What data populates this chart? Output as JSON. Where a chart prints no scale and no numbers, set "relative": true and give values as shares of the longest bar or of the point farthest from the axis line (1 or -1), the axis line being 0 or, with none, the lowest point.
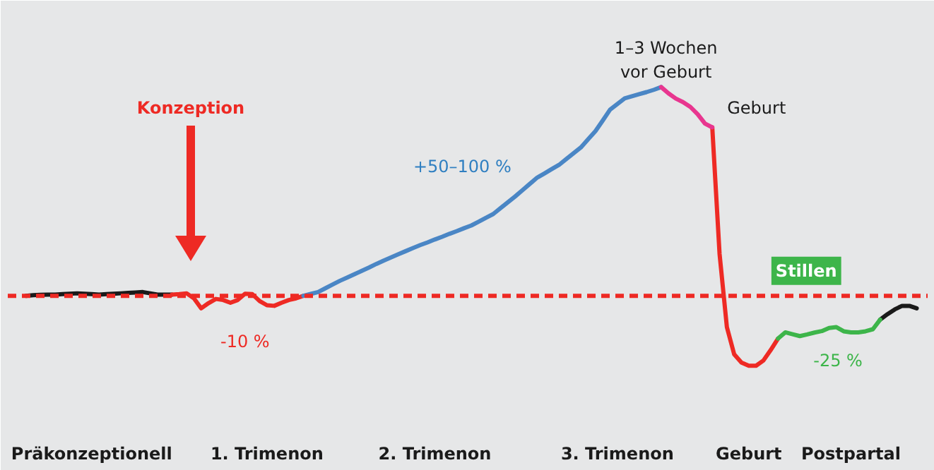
{
  "chart_data": {
    "type": "line",
    "relative": true,
    "line_style": "solid",
    "categories": [
      null,
      null,
      null,
      null,
      null,
      null,
      null,
      null,
      null,
      null,
      "Präkonzeptionell",
      null,
      null,
      null,
      null,
      null,
      null,
      null,
      null,
      null,
      null,
      null,
      null,
      null,
      null,
      null,
      null,
      null,
      null,
      null,
      null,
      null,
      null,
      null,
      "1. Trimenon",
      null,
      null,
      null,
      null,
      null,
      null,
      null,
      null,
      null,
      null,
      null,
      null,
      null,
      null,
      null,
      null,
      null,
      null,
      null,
      null,
      null,
      null,
      "2. Trimenon",
      null,
      null,
      null,
      null,
      null,
      null,
      null,
      null,
      null,
      null,
      null,
      null,
      null,
      null,
      null,
      null,
      null,
      null,
      null,
      null,
      null,
      null,
      null,
      null,
      "3. Trimenon",
      null,
      null,
      null,
      null,
      null,
      null,
      null,
      null,
      null,
      null,
      null,
      null,
      null,
      null,
      null,
      null,
      null,
      "Geburt",
      null,
      null,
      null,
      null,
      null,
      null,
      null,
      null,
      null,
      null,
      null,
      null,
      null,
      "Postpartal",
      null,
      null,
      null,
      null,
      null,
      null,
      null,
      null,
      null,
      null
    ],
    "series": [
      {
        "color": "#1a1a1a",
        "values": [
          null,
          0,
          0.003,
          0.005,
          0.006,
          0.006,
          0.008,
          0.01,
          0.012,
          0.01,
          0.008,
          0.006,
          0.008,
          0.01,
          0.012,
          0.014,
          0.016,
          0.018,
          0.012,
          0.006,
          0.006,
          0.006,
          null,
          null,
          null,
          null,
          null,
          null,
          null,
          null,
          null,
          null,
          null,
          null,
          null,
          null,
          null,
          null,
          null,
          null,
          null,
          null,
          null,
          null,
          null,
          null,
          null,
          null,
          null,
          null,
          null,
          null,
          null,
          null,
          null,
          null,
          null,
          null,
          null,
          null,
          null,
          null,
          null,
          null,
          null,
          null,
          null,
          null,
          null,
          null,
          null,
          null,
          null,
          null,
          null,
          null,
          null,
          null,
          null,
          null,
          null,
          null,
          null,
          null,
          null,
          null,
          null,
          null,
          null,
          null,
          null,
          null,
          null,
          null,
          null,
          null,
          null,
          null,
          null,
          null,
          null,
          null,
          null,
          null,
          null,
          null,
          null,
          null,
          null,
          null,
          null,
          null,
          null,
          null,
          null,
          null,
          null,
          null,
          -0.114,
          -0.088,
          -0.065,
          -0.048,
          -0.048,
          -0.06,
          null
        ]
      },
      {
        "color": "#ee2a24",
        "values": [
          null,
          null,
          null,
          null,
          null,
          null,
          null,
          null,
          null,
          null,
          null,
          null,
          null,
          null,
          null,
          null,
          null,
          null,
          null,
          null,
          null,
          0.006,
          0.008,
          0.012,
          -0.012,
          -0.06,
          -0.035,
          -0.015,
          -0.02,
          -0.033,
          -0.02,
          0.01,
          0.008,
          -0.025,
          -0.045,
          -0.048,
          -0.033,
          -0.02,
          -0.012,
          0,
          null,
          null,
          null,
          null,
          null,
          null,
          null,
          null,
          null,
          null,
          null,
          null,
          null,
          null,
          null,
          null,
          null,
          null,
          null,
          null,
          null,
          null,
          null,
          null,
          null,
          null,
          null,
          null,
          null,
          null,
          null,
          null,
          null,
          null,
          null,
          null,
          null,
          null,
          null,
          null,
          null,
          null,
          null,
          null,
          null,
          null,
          null,
          null,
          null,
          null,
          null,
          null,
          null,
          null,
          null,
          0.807,
          0.2,
          -0.15,
          -0.28,
          -0.32,
          -0.335,
          -0.335,
          -0.31,
          -0.26,
          -0.205,
          null,
          null,
          null,
          null,
          null,
          null,
          null,
          null,
          null,
          null,
          null,
          null,
          null,
          null,
          null,
          null,
          null,
          null,
          null,
          null
        ]
      },
      {
        "color": "#4a86c5",
        "values": [
          null,
          null,
          null,
          null,
          null,
          null,
          null,
          null,
          null,
          null,
          null,
          null,
          null,
          null,
          null,
          null,
          null,
          null,
          null,
          null,
          null,
          null,
          null,
          null,
          null,
          null,
          null,
          null,
          null,
          null,
          null,
          null,
          null,
          null,
          null,
          null,
          null,
          null,
          null,
          0,
          0.009,
          0.018,
          0.036,
          0.054,
          0.072,
          0.088,
          0.104,
          0.12,
          0.136,
          0.153,
          0.169,
          0.184,
          0.199,
          0.214,
          0.229,
          0.243,
          0.256,
          0.27,
          0.283,
          0.297,
          0.31,
          0.324,
          0.337,
          0.355,
          0.374,
          0.392,
          0.42,
          0.448,
          0.476,
          0.506,
          0.536,
          0.566,
          0.586,
          0.607,
          0.627,
          0.655,
          0.683,
          0.711,
          0.75,
          0.789,
          0.84,
          0.892,
          0.919,
          0.946,
          0.956,
          0.966,
          0.976,
          0.987,
          1,
          null,
          null,
          null,
          null,
          null,
          null,
          null,
          null,
          null,
          null,
          null,
          null,
          null,
          null,
          null,
          null,
          null,
          null,
          null,
          null,
          null,
          null,
          null,
          null,
          null,
          null,
          null,
          null,
          null,
          null,
          null,
          null,
          null,
          null,
          null,
          null
        ]
      },
      {
        "color": "#e8368f",
        "values": [
          null,
          null,
          null,
          null,
          null,
          null,
          null,
          null,
          null,
          null,
          null,
          null,
          null,
          null,
          null,
          null,
          null,
          null,
          null,
          null,
          null,
          null,
          null,
          null,
          null,
          null,
          null,
          null,
          null,
          null,
          null,
          null,
          null,
          null,
          null,
          null,
          null,
          null,
          null,
          null,
          null,
          null,
          null,
          null,
          null,
          null,
          null,
          null,
          null,
          null,
          null,
          null,
          null,
          null,
          null,
          null,
          null,
          null,
          null,
          null,
          null,
          null,
          null,
          null,
          null,
          null,
          null,
          null,
          null,
          null,
          null,
          null,
          null,
          null,
          null,
          null,
          null,
          null,
          null,
          null,
          null,
          null,
          null,
          null,
          null,
          null,
          null,
          null,
          1,
          0.97,
          0.945,
          0.928,
          0.905,
          0.87,
          0.825,
          0.807,
          null,
          null,
          null,
          null,
          null,
          null,
          null,
          null,
          null,
          null,
          null,
          null,
          null,
          null,
          null,
          null,
          null,
          null,
          null,
          null,
          null,
          null,
          null,
          null,
          null,
          null,
          null,
          null,
          null
        ]
      },
      {
        "color": "#3db54a",
        "values": [
          null,
          null,
          null,
          null,
          null,
          null,
          null,
          null,
          null,
          null,
          null,
          null,
          null,
          null,
          null,
          null,
          null,
          null,
          null,
          null,
          null,
          null,
          null,
          null,
          null,
          null,
          null,
          null,
          null,
          null,
          null,
          null,
          null,
          null,
          null,
          null,
          null,
          null,
          null,
          null,
          null,
          null,
          null,
          null,
          null,
          null,
          null,
          null,
          null,
          null,
          null,
          null,
          null,
          null,
          null,
          null,
          null,
          null,
          null,
          null,
          null,
          null,
          null,
          null,
          null,
          null,
          null,
          null,
          null,
          null,
          null,
          null,
          null,
          null,
          null,
          null,
          null,
          null,
          null,
          null,
          null,
          null,
          null,
          null,
          null,
          null,
          null,
          null,
          null,
          null,
          null,
          null,
          null,
          null,
          null,
          null,
          null,
          null,
          null,
          null,
          null,
          null,
          null,
          null,
          -0.205,
          -0.175,
          -0.184,
          -0.193,
          -0.185,
          -0.176,
          -0.169,
          -0.154,
          -0.15,
          -0.17,
          -0.175,
          -0.175,
          -0.17,
          -0.16,
          -0.114,
          null,
          null,
          null,
          null,
          null,
          null
        ]
      }
    ],
    "ref_lines": [
      {
        "axis": "y",
        "value": 0,
        "color": "#ee2a24",
        "line_style": "dashed"
      }
    ],
    "annotations": [
      "Konzeption",
      "+50–100 %",
      "-10 %",
      "1–3 Wochen\nvor Geburt",
      "Geburt",
      "Stillen",
      "-25 %"
    ]
  }
}
